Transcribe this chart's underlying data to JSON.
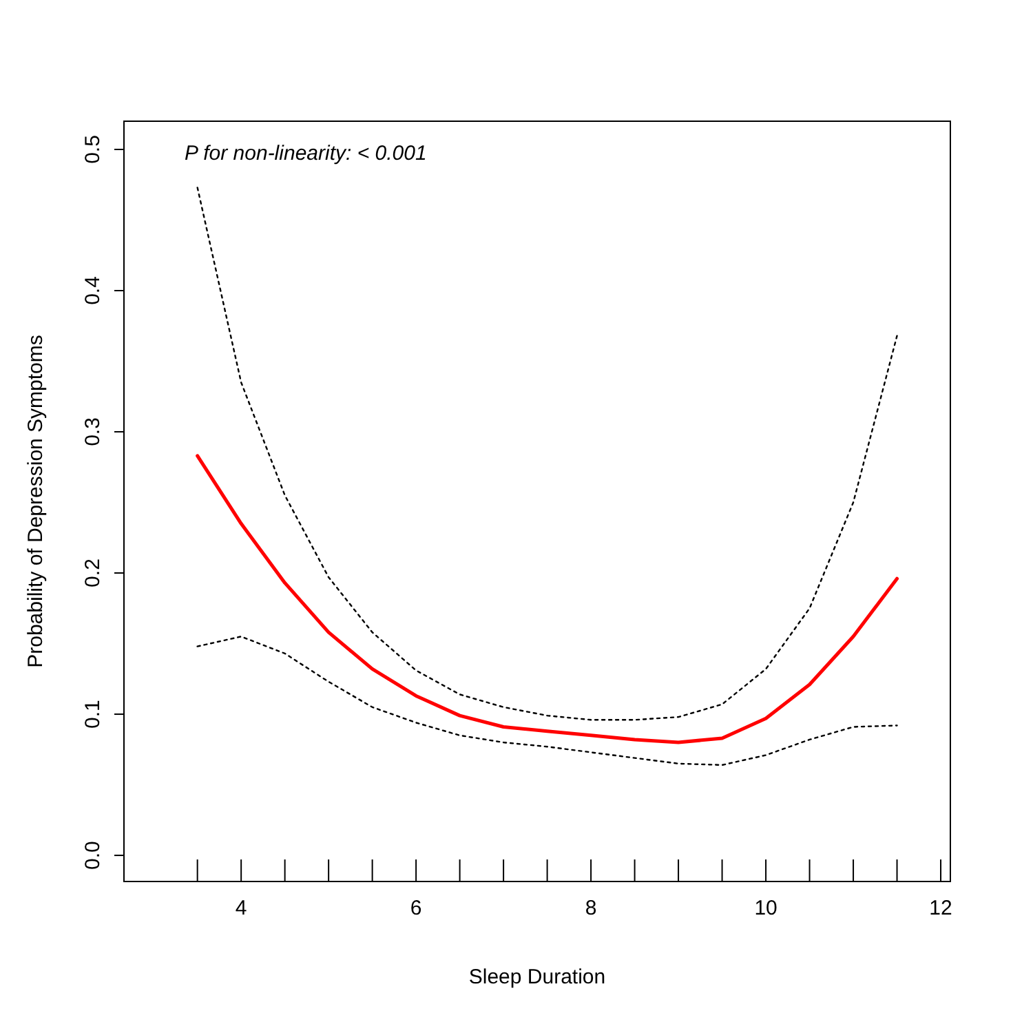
{
  "chart_data": {
    "type": "line",
    "xlabel": "Sleep Duration",
    "ylabel": "Probability of Depression Symptoms",
    "annotations": [
      "P for non-linearity: < 0.001"
    ],
    "x": [
      3.5,
      4,
      4.5,
      5,
      5.5,
      6,
      6.5,
      7,
      7.5,
      8,
      8.5,
      9,
      9.5,
      10,
      10.5,
      11,
      11.5
    ],
    "series": [
      {
        "color": "#ff0000",
        "line_style": "solid",
        "values": [
          0.283,
          0.235,
          0.193,
          0.158,
          0.132,
          0.113,
          0.099,
          0.091,
          0.088,
          0.085,
          0.082,
          0.08,
          0.083,
          0.097,
          0.121,
          0.155,
          0.196
        ]
      },
      {
        "color": "#000000",
        "line_style": "dotted",
        "values": [
          0.473,
          0.335,
          0.255,
          0.197,
          0.158,
          0.131,
          0.114,
          0.105,
          0.099,
          0.096,
          0.096,
          0.098,
          0.107,
          0.132,
          0.175,
          0.25,
          0.368
        ]
      },
      {
        "color": "#000000",
        "line_style": "dotted",
        "values": [
          0.148,
          0.155,
          0.143,
          0.123,
          0.105,
          0.094,
          0.085,
          0.08,
          0.077,
          0.073,
          0.069,
          0.065,
          0.064,
          0.071,
          0.082,
          0.091,
          0.092
        ]
      }
    ],
    "xlim": [
      2.66,
      12.11
    ],
    "ylim": [
      -0.0185,
      0.52
    ],
    "xticks": [
      {
        "value": 3.5,
        "label": null
      },
      4,
      {
        "value": 4.5,
        "label": null
      },
      {
        "value": 5,
        "label": null
      },
      {
        "value": 5.5,
        "label": null
      },
      6,
      {
        "value": 6.5,
        "label": null
      },
      {
        "value": 7,
        "label": null
      },
      {
        "value": 7.5,
        "label": null
      },
      8,
      {
        "value": 8.5,
        "label": null
      },
      {
        "value": 9,
        "label": null
      },
      {
        "value": 9.5,
        "label": null
      },
      10,
      {
        "value": 10.5,
        "label": null
      },
      {
        "value": 11,
        "label": null
      },
      {
        "value": 11.5,
        "label": null
      },
      12
    ],
    "yticks": [
      {
        "value": 0,
        "label": "0.0"
      },
      0.1,
      0.2,
      0.3,
      0.4,
      0.5
    ],
    "grid": false,
    "marker": "none"
  }
}
